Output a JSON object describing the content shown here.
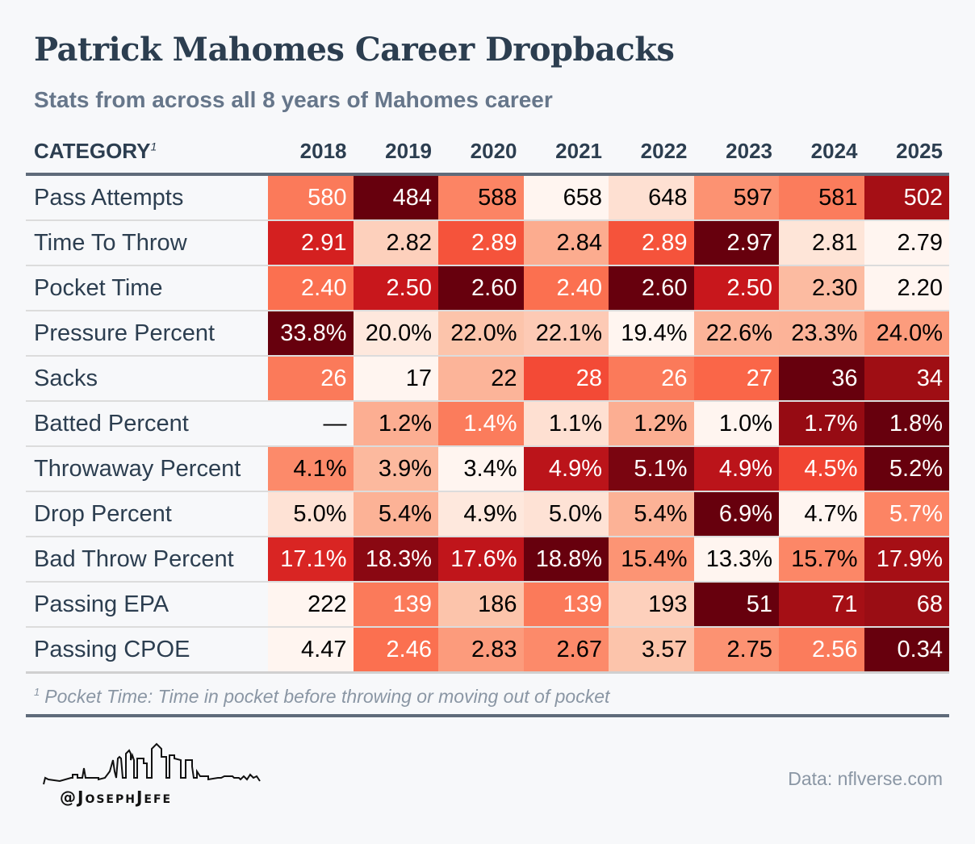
{
  "title": "Patrick Mahomes Career Dropbacks",
  "subtitle": "Stats from across all 8 years of Mahomes career",
  "footnote_marker": "1",
  "footnote": "Pocket Time: Time in pocket before throwing or moving out of pocket",
  "source": "Data: nflverse.com",
  "logo_text": "@JosephJefe",
  "chart_data": {
    "type": "heatmap",
    "title": "Patrick Mahomes Career Dropbacks",
    "subtitle": "Stats from across all 8 years of Mahomes career",
    "category_header": "CATEGORY",
    "columns": [
      "2018",
      "2019",
      "2020",
      "2021",
      "2022",
      "2023",
      "2024",
      "2025"
    ],
    "colorscale": [
      "#fff5f0",
      "#fee0d2",
      "#fcbba1",
      "#fc9272",
      "#fb6a4a",
      "#ef3b2c",
      "#cb181d",
      "#a50f15",
      "#67000d"
    ],
    "rows": [
      {
        "label": "Pass Attempts",
        "values": [
          "580",
          "484",
          "588",
          "658",
          "648",
          "597",
          "581",
          "502"
        ],
        "bg": [
          "#fb7a5a",
          "#67000d",
          "#fc8464",
          "#fff5f0",
          "#fee0d2",
          "#fc9272",
          "#fb7c5c",
          "#a50f15"
        ],
        "fg": [
          "#fff",
          "#fff",
          "#000",
          "#000",
          "#000",
          "#000",
          "#000",
          "#fff"
        ]
      },
      {
        "label": "Time To Throw",
        "values": [
          "2.91",
          "2.82",
          "2.89",
          "2.84",
          "2.89",
          "2.97",
          "2.81",
          "2.79"
        ],
        "bg": [
          "#d42020",
          "#fdd0bc",
          "#f5533b",
          "#fcac8f",
          "#f5533b",
          "#67000d",
          "#fee5d8",
          "#fff5f0"
        ],
        "fg": [
          "#fff",
          "#000",
          "#fff",
          "#000",
          "#fff",
          "#fff",
          "#000",
          "#000"
        ]
      },
      {
        "label": "Pocket Time",
        "values": [
          "2.40",
          "2.50",
          "2.60",
          "2.40",
          "2.60",
          "2.50",
          "2.30",
          "2.20"
        ],
        "bg": [
          "#fb7050",
          "#c8171c",
          "#67000d",
          "#fb7050",
          "#67000d",
          "#c8171c",
          "#fcbba1",
          "#fff5f0"
        ],
        "fg": [
          "#fff",
          "#fff",
          "#fff",
          "#fff",
          "#fff",
          "#fff",
          "#000",
          "#000"
        ]
      },
      {
        "label": "Pressure Percent",
        "values": [
          "33.8%",
          "20.0%",
          "22.0%",
          "22.1%",
          "19.4%",
          "22.6%",
          "23.3%",
          "24.0%"
        ],
        "bg": [
          "#67000d",
          "#fee8dd",
          "#fcc4ab",
          "#fdcab5",
          "#fff5f0",
          "#fcb499",
          "#fcb398",
          "#fc9c7d"
        ],
        "fg": [
          "#fff",
          "#000",
          "#000",
          "#000",
          "#000",
          "#000",
          "#000",
          "#000"
        ]
      },
      {
        "label": "Sacks",
        "values": [
          "26",
          "17",
          "22",
          "28",
          "26",
          "27",
          "36",
          "34"
        ],
        "bg": [
          "#fb7a5a",
          "#fff5f0",
          "#fcb499",
          "#f34a36",
          "#fb7a5a",
          "#fa6648",
          "#67000d",
          "#9f0e14"
        ],
        "fg": [
          "#fff",
          "#000",
          "#000",
          "#fff",
          "#fff",
          "#fff",
          "#fff",
          "#fff"
        ]
      },
      {
        "label": "Batted Percent",
        "values": [
          "—",
          "1.2%",
          "1.4%",
          "1.1%",
          "1.2%",
          "1.0%",
          "1.7%",
          "1.8%"
        ],
        "bg": [
          "#f7f8fa",
          "#fcae92",
          "#fb7c5c",
          "#fee0d2",
          "#fcae92",
          "#fff5f0",
          "#960b13",
          "#67000d"
        ],
        "fg": [
          "#000",
          "#000",
          "#fff",
          "#000",
          "#000",
          "#000",
          "#fff",
          "#fff"
        ]
      },
      {
        "label": "Throwaway Percent",
        "values": [
          "4.1%",
          "3.9%",
          "3.4%",
          "4.9%",
          "5.1%",
          "4.9%",
          "4.5%",
          "5.2%"
        ],
        "bg": [
          "#fc8a6a",
          "#fcb99e",
          "#fff5f0",
          "#bb141a",
          "#7a0510",
          "#bb141a",
          "#f14432",
          "#67000d"
        ],
        "fg": [
          "#000",
          "#000",
          "#000",
          "#fff",
          "#fff",
          "#fff",
          "#fff",
          "#fff"
        ]
      },
      {
        "label": "Drop Percent",
        "values": [
          "5.0%",
          "5.4%",
          "4.9%",
          "5.0%",
          "5.4%",
          "6.9%",
          "4.7%",
          "5.7%"
        ],
        "bg": [
          "#fee2d5",
          "#fcb296",
          "#fee8dd",
          "#fee2d5",
          "#fcb296",
          "#67000d",
          "#fff5f0",
          "#fc8464"
        ],
        "fg": [
          "#000",
          "#000",
          "#000",
          "#000",
          "#000",
          "#fff",
          "#000",
          "#fff"
        ]
      },
      {
        "label": "Bad Throw Percent",
        "values": [
          "17.1%",
          "18.3%",
          "17.6%",
          "18.8%",
          "15.4%",
          "13.3%",
          "15.7%",
          "17.9%"
        ],
        "bg": [
          "#d92523",
          "#8a0812",
          "#c0151b",
          "#67000d",
          "#fc9474",
          "#fff5f0",
          "#fc8767",
          "#a60f15"
        ],
        "fg": [
          "#fff",
          "#fff",
          "#fff",
          "#fff",
          "#000",
          "#000",
          "#000",
          "#fff"
        ]
      },
      {
        "label": "Passing EPA",
        "values": [
          "222",
          "139",
          "186",
          "139",
          "193",
          "51",
          "71",
          "68"
        ],
        "bg": [
          "#fff5f0",
          "#fb7a5a",
          "#fcc4ab",
          "#fb7a5a",
          "#fdd0bc",
          "#67000d",
          "#a50f15",
          "#9a0d14"
        ],
        "fg": [
          "#000",
          "#fff",
          "#000",
          "#fff",
          "#000",
          "#fff",
          "#fff",
          "#fff"
        ]
      },
      {
        "label": "Passing CPOE",
        "values": [
          "4.47",
          "2.46",
          "2.83",
          "2.67",
          "3.57",
          "2.75",
          "2.56",
          "0.34"
        ],
        "bg": [
          "#fff5f0",
          "#fb7050",
          "#fc9b7c",
          "#fc8a6a",
          "#fcc4ab",
          "#fc9272",
          "#fb7c5c",
          "#67000d"
        ],
        "fg": [
          "#000",
          "#fff",
          "#000",
          "#000",
          "#000",
          "#000",
          "#fff",
          "#fff"
        ]
      }
    ]
  }
}
